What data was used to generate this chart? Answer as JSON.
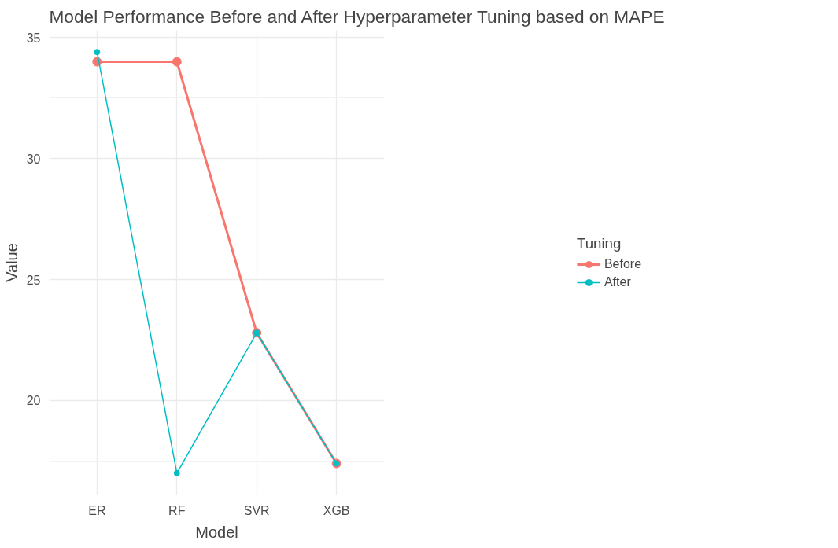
{
  "chart_data": {
    "type": "line",
    "title": "Model Performance Before and After Hyperparameter Tuning based on MAPE",
    "xlabel": "Model",
    "ylabel": "Value",
    "legend_title": "Tuning",
    "categories": [
      "ER",
      "RF",
      "SVR",
      "XGB"
    ],
    "series": [
      {
        "name": "Before",
        "color": "#f8766d",
        "values": [
          34.0,
          34.0,
          22.8,
          17.4
        ]
      },
      {
        "name": "After",
        "color": "#00bfc4",
        "values": [
          34.4,
          17.0,
          22.8,
          17.4
        ]
      }
    ],
    "ylim": [
      16.1,
      35.3
    ],
    "yticks": [
      20,
      25,
      30,
      35
    ],
    "grid": true,
    "legend": "right",
    "marker": "circle",
    "line_style": "solid"
  }
}
